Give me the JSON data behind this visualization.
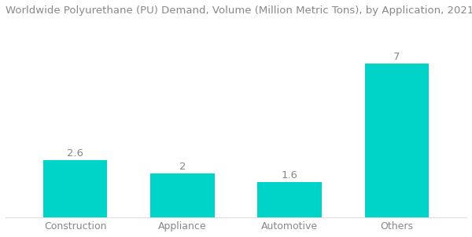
{
  "title": "Worldwide Polyurethane (PU) Demand, Volume (Million Metric Tons), by Application, 2021",
  "categories": [
    "Construction",
    "Appliance",
    "Automotive",
    "Others"
  ],
  "values": [
    2.6,
    2.0,
    1.6,
    7.0
  ],
  "bar_color": "#00D4C8",
  "bar_labels": [
    "2.6",
    "2",
    "1.6",
    "7"
  ],
  "background_color": "#ffffff",
  "title_fontsize": 9.5,
  "value_fontsize": 9.5,
  "tick_fontsize": 9,
  "ylim": [
    0,
    8.8
  ],
  "bar_width": 0.6,
  "title_color": "#888888",
  "label_color": "#888888",
  "tick_color": "#888888"
}
